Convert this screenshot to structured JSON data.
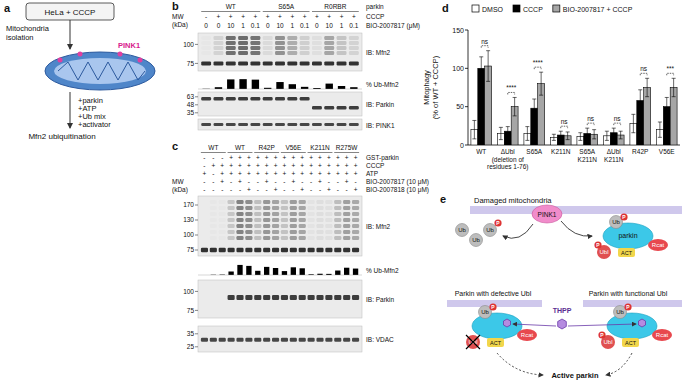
{
  "panel_a": {
    "letter": "a",
    "top_box": "HeLa + CCCP",
    "step": "Mitochondria isolation",
    "protein": "PINK1",
    "additions": [
      "+parkin",
      "+ATP",
      "+Ub mix",
      "+activator"
    ],
    "readout": "Mfn2 ubiquitination"
  },
  "panel_b": {
    "letter": "b",
    "header": "parkin",
    "mw_title": [
      "MW",
      "(kDa)"
    ],
    "groups": [
      {
        "name": "WT",
        "lanes": 5
      },
      {
        "name": "S65A",
        "lanes": 4
      },
      {
        "name": "R0RBR",
        "lanes": 4
      }
    ],
    "rows": [
      {
        "label": "CCCP",
        "values": [
          "-",
          "+",
          "+",
          "+",
          "+",
          "+",
          "+",
          "+",
          "+",
          "+",
          "+",
          "+",
          "+"
        ]
      },
      {
        "label": "BIO-2007817 (μM)",
        "values": [
          "0",
          "0",
          "10",
          "1",
          "0.1",
          "0",
          "10",
          "1",
          "0.1",
          "0",
          "10",
          "1",
          "0.1"
        ]
      }
    ],
    "blots": [
      {
        "label": "IB: Mfn2",
        "mw": [
          100,
          75
        ]
      },
      {
        "label": "IB: Parkin",
        "mw": [
          63,
          48,
          35
        ]
      },
      {
        "label": "IB: PINK1"
      }
    ],
    "ub_label": "% Ub-Mfn2",
    "ub_range": [
      0,
      100
    ],
    "ub_values": [
      2,
      15,
      80,
      82,
      78,
      10,
      58,
      40,
      18,
      8,
      45,
      25,
      15
    ]
  },
  "panel_c": {
    "letter": "c",
    "mw_title": [
      "MW",
      "(kDa)"
    ],
    "groups": [
      {
        "name": "WT",
        "lanes": 3
      },
      {
        "name": "WT",
        "lanes": 3
      },
      {
        "name": "R42P",
        "lanes": 3
      },
      {
        "name": "V56E",
        "lanes": 3
      },
      {
        "name": "K211N",
        "lanes": 3
      },
      {
        "name": "R275W",
        "lanes": 3
      }
    ],
    "rows": [
      {
        "label": "GST-parkin",
        "values": [
          "-",
          "-",
          "-",
          "+",
          "+",
          "+",
          "+",
          "+",
          "+",
          "+",
          "+",
          "+",
          "+",
          "+",
          "+",
          "+",
          "+",
          "+"
        ]
      },
      {
        "label": "CCCP",
        "values": [
          "-",
          "+",
          "+",
          "+",
          "+",
          "+",
          "+",
          "+",
          "+",
          "+",
          "+",
          "+",
          "+",
          "+",
          "+",
          "+",
          "+",
          "+"
        ]
      },
      {
        "label": "ATP",
        "values": [
          "+",
          "-",
          "+",
          "+",
          "+",
          "+",
          "+",
          "+",
          "+",
          "+",
          "+",
          "+",
          "+",
          "+",
          "+",
          "+",
          "+",
          "+"
        ]
      },
      {
        "label": "BIO-2007817 (10 μM)",
        "values": [
          "-",
          "-",
          "+",
          "-",
          "+",
          "-",
          "-",
          "+",
          "-",
          "-",
          "+",
          "-",
          "-",
          "+",
          "-",
          "-",
          "+",
          "-"
        ]
      },
      {
        "label": "BIO-2007818 (10 μM)",
        "values": [
          "-",
          "-",
          "-",
          "-",
          "-",
          "+",
          "-",
          "-",
          "+",
          "-",
          "-",
          "+",
          "-",
          "-",
          "+",
          "-",
          "-",
          "+"
        ]
      }
    ],
    "blots": [
      {
        "label": "IB: Mfn2",
        "mw": [
          170,
          130,
          100,
          75
        ]
      },
      {
        "label": "IB: Parkin",
        "mw": [
          100,
          75
        ]
      },
      {
        "label": "IB: VDAC",
        "mw": [
          35,
          25
        ]
      }
    ],
    "ub_label": "% Ub-Mfn2",
    "ub_range": [
      0,
      100
    ],
    "ub_values": [
      0,
      2,
      3,
      25,
      72,
      65,
      30,
      58,
      50,
      28,
      55,
      48,
      5,
      9,
      8,
      32,
      52,
      46
    ]
  },
  "chart_data": {
    "type": "bar",
    "panel_label": "d",
    "y_label": "Mitophagy (% of WT + CCCP)",
    "categories": [
      "WT",
      "ΔUbl (deletion of residues 1-76)",
      "S65A",
      "K211N",
      "S65A K211N",
      "ΔUbl K211N",
      "R42P",
      "V56E"
    ],
    "series": [
      {
        "name": "DMSO",
        "color": "#ffffff",
        "values": [
          20,
          15,
          15,
          10,
          11,
          12,
          28,
          20
        ],
        "errors": [
          12,
          8,
          9,
          4,
          5,
          6,
          12,
          10
        ]
      },
      {
        "name": "CCCP",
        "color": "#000000",
        "values": [
          100,
          18,
          48,
          13,
          15,
          16,
          58,
          50
        ],
        "errors": [
          15,
          6,
          12,
          5,
          7,
          6,
          14,
          12
        ]
      },
      {
        "name": "BIO-2007817 + CCCP",
        "color": "#a6a6a6",
        "values": [
          103,
          50,
          80,
          12,
          14,
          13,
          75,
          75
        ],
        "errors": [
          20,
          12,
          15,
          5,
          6,
          5,
          12,
          12
        ]
      }
    ],
    "significance": [
      "ns",
      "****",
      "****",
      "ns",
      "ns",
      "ns",
      "ns",
      "***"
    ],
    "ylim": [
      0,
      150
    ],
    "yticks": [
      0,
      50,
      100,
      150
    ],
    "legend": "top"
  },
  "panel_e": {
    "letter": "e",
    "title": "Damaged mitochondria",
    "kinase": "PINK1",
    "ub": "Ub",
    "phospho": "P",
    "parkin": "parkin",
    "rcat": "Rcat",
    "ubl": "Ubl",
    "act": "ACT",
    "compound": "THPP",
    "defective": "Parkin with defective Ubl",
    "functional": "Parkin with functional Ubl",
    "outcome": "Active parkin"
  }
}
